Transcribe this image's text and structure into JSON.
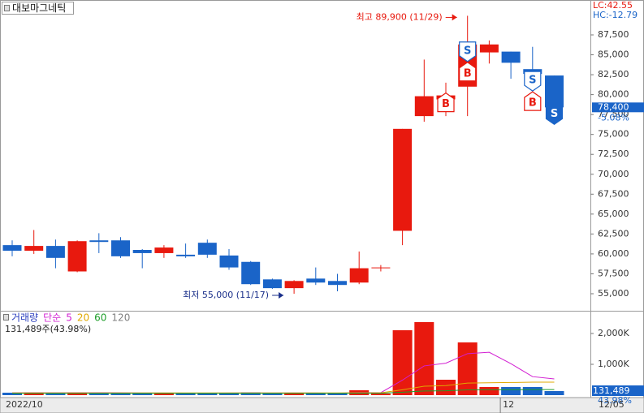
{
  "chart_data": [
    {
      "type": "candlestick",
      "title": "대보마그네틱",
      "open": [
        61100,
        60400,
        61000,
        57800,
        61700,
        61700,
        60500,
        60100,
        59900,
        61400,
        59800,
        59000,
        56800,
        55700,
        56900,
        56600,
        56400,
        58200,
        62900,
        77300,
        79400,
        81000,
        85300,
        85400,
        83200,
        82400
      ],
      "high": [
        61700,
        63000,
        61800,
        61700,
        62600,
        62100,
        60600,
        61100,
        61300,
        61800,
        60600,
        59100,
        56900,
        56700,
        58300,
        57500,
        60300,
        58600,
        75700,
        84400,
        81500,
        89900,
        86800,
        85400,
        86000,
        82400
      ],
      "low": [
        59700,
        60000,
        58200,
        57700,
        60100,
        59500,
        58200,
        59500,
        59500,
        59500,
        58000,
        56100,
        55600,
        55000,
        56100,
        55300,
        56200,
        57800,
        61100,
        76600,
        77300,
        77300,
        83900,
        82000,
        80900,
        78400
      ],
      "close": [
        60400,
        61000,
        59500,
        61600,
        61500,
        59700,
        60100,
        60800,
        59700,
        59900,
        58300,
        56200,
        55700,
        56600,
        56400,
        56100,
        58200,
        58300,
        75700,
        79800,
        79900,
        86300,
        86300,
        84000,
        82600,
        78400
      ],
      "ylim": [
        52860,
        91880
      ],
      "yticks": [
        {
          "value": 55000,
          "label": "55,000"
        },
        {
          "value": 57500,
          "label": "57,500"
        },
        {
          "value": 60000,
          "label": "60,000"
        },
        {
          "value": 62500,
          "label": "62,500"
        },
        {
          "value": 65000,
          "label": "65,000"
        },
        {
          "value": 67500,
          "label": "67,500"
        },
        {
          "value": 70000,
          "label": "70,000"
        },
        {
          "value": 72500,
          "label": "72,500"
        },
        {
          "value": 75000,
          "label": "75,000"
        },
        {
          "value": 77500,
          "label": "77,500"
        },
        {
          "value": 80000,
          "label": "80,000"
        },
        {
          "value": 82500,
          "label": "82,500"
        },
        {
          "value": 85000,
          "label": "85,000"
        },
        {
          "value": 87500,
          "label": "87,500"
        }
      ],
      "current": {
        "value": 78400,
        "label": "78,400"
      },
      "change": {
        "value": -5.08,
        "label": "-5.08%"
      },
      "lc": "LC:42.55",
      "hc": "HC:-12.79",
      "high_annotation": "최고 89,900 (11/29)",
      "low_annotation": "최저 55,000 (11/17)",
      "signals": [
        null,
        null,
        null,
        null,
        null,
        null,
        null,
        null,
        null,
        null,
        null,
        null,
        null,
        null,
        null,
        null,
        null,
        null,
        null,
        null,
        [
          "B"
        ],
        [
          "S",
          "B"
        ],
        null,
        null,
        [
          "S",
          "B"
        ],
        [
          "S"
        ]
      ],
      "up_color": "#e8190e",
      "down_color": "#1a64c8"
    },
    {
      "type": "bar",
      "title": "거래량",
      "ma_type": "단순",
      "summary": "131,489주(43.98%)",
      "categories": [
        "2022/10",
        null,
        null,
        null,
        null,
        null,
        null,
        null,
        null,
        null,
        null,
        null,
        null,
        null,
        null,
        null,
        null,
        null,
        null,
        null,
        null,
        null,
        null,
        "12",
        null,
        "12/05"
      ],
      "values": [
        80000,
        90000,
        70000,
        90000,
        60000,
        70000,
        60000,
        70000,
        60000,
        70000,
        70000,
        90000,
        60000,
        70000,
        60000,
        60000,
        160000,
        50000,
        2105000,
        2370000,
        500000,
        1710000,
        263000,
        263000,
        263000,
        131489
      ],
      "series": [
        {
          "name": "5",
          "color": "#d21fd2",
          "values": [
            76000,
            76000,
            76000,
            76000,
            78000,
            76000,
            70000,
            70000,
            66000,
            66000,
            68000,
            72000,
            70000,
            72000,
            70000,
            64000,
            82000,
            80000,
            487000,
            949000,
            1037000,
            1347000,
            1390000,
            1021000,
            600000,
            526000
          ]
        },
        {
          "name": "20",
          "color": "#e0a800",
          "values": [
            74000,
            74000,
            74000,
            74000,
            74000,
            74000,
            74000,
            74000,
            74000,
            74000,
            74000,
            74000,
            74000,
            73000,
            73000,
            72000,
            76000,
            75000,
            175000,
            290000,
            310000,
            390000,
            400000,
            410000,
            420000,
            420000
          ]
        },
        {
          "name": "60",
          "color": "#1e9e2a",
          "values": [
            60000,
            60000,
            60000,
            60000,
            60000,
            60000,
            60000,
            60000,
            60000,
            60000,
            60000,
            60000,
            60000,
            60000,
            60000,
            60000,
            62000,
            62000,
            95000,
            135000,
            143000,
            170000,
            173000,
            177000,
            180000,
            181000
          ]
        },
        {
          "name": "120",
          "color": "#808080",
          "values": [
            null,
            null,
            null,
            null,
            null,
            null,
            null,
            null,
            null,
            null,
            null,
            null,
            null,
            null,
            null,
            null,
            null,
            null,
            null,
            null,
            null,
            null,
            null,
            null,
            null,
            null
          ]
        }
      ],
      "ylim": [
        0,
        2737000
      ],
      "yticks": [
        {
          "value": 1000000,
          "label": "1,000K"
        },
        {
          "value": 2000000,
          "label": "2,000K"
        }
      ],
      "current": {
        "value": 131489,
        "label": "131,489"
      },
      "ratio": {
        "value": 43.98,
        "label": "43.98%"
      }
    }
  ]
}
